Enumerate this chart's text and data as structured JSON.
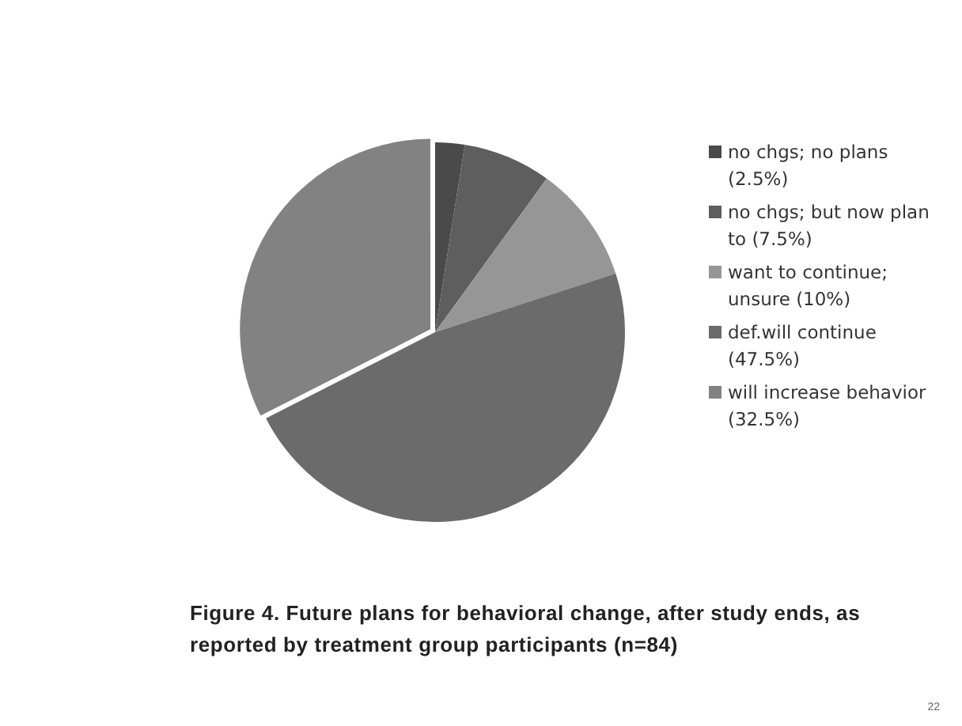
{
  "chart_data": {
    "type": "pie",
    "categories": [
      "no chgs; no plans (2.5%)",
      "no chgs; but now plan to (7.5%)",
      "want to continue; unsure (10%)",
      "def.will continue (47.5%)",
      "will increase behavior (32.5%)"
    ],
    "values": [
      2.5,
      7.5,
      10,
      47.5,
      32.5
    ],
    "colors": [
      "#4a4a4a",
      "#5e5e5e",
      "#969696",
      "#6b6b6b",
      "#828282"
    ],
    "legend": "right",
    "annotations": [
      "Figure 4. Future plans for behavioral change, after study ends, as reported by treatment group participants (n=84)",
      "22"
    ]
  }
}
